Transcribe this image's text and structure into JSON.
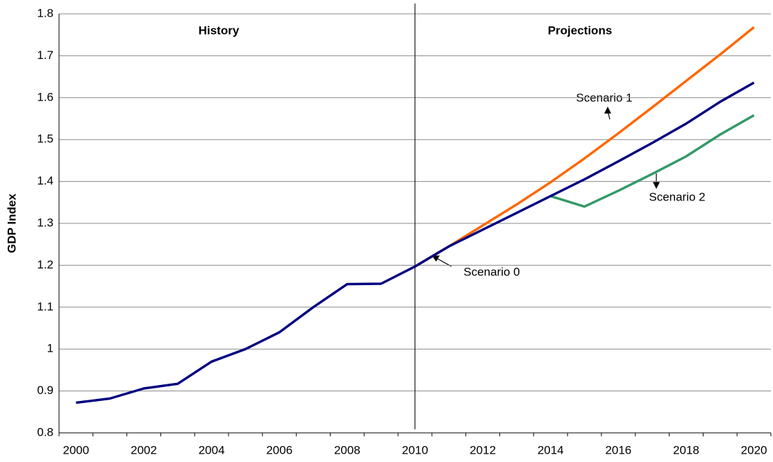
{
  "chart_data": {
    "type": "line",
    "y_label": "GDP Index",
    "categories": [
      "2000",
      null,
      "2002",
      null,
      "2004",
      null,
      "2006",
      null,
      "2008",
      null,
      "2010",
      null,
      "2012",
      null,
      "2014",
      null,
      "2016",
      null,
      "2018",
      null,
      "2020"
    ],
    "series": [
      {
        "name": "Scenario 0",
        "color": "#000080",
        "values": [
          0.872,
          0.882,
          0.906,
          0.917,
          0.97,
          1.0,
          1.04,
          1.1,
          1.155,
          1.156,
          1.197,
          1.245,
          1.285,
          1.325,
          1.365,
          1.405,
          1.448,
          1.492,
          1.538,
          1.59,
          1.636
        ]
      },
      {
        "name": "Scenario 1",
        "color": "#ff6600",
        "values": [
          null,
          null,
          null,
          null,
          null,
          null,
          null,
          null,
          null,
          null,
          1.197,
          1.245,
          1.295,
          1.345,
          1.398,
          1.455,
          1.515,
          1.577,
          1.64,
          1.703,
          1.768
        ]
      },
      {
        "name": "Scenario 2",
        "color": "#339966",
        "values": [
          null,
          null,
          null,
          null,
          null,
          null,
          null,
          null,
          null,
          null,
          null,
          null,
          null,
          null,
          1.365,
          1.34,
          1.378,
          1.418,
          1.46,
          1.512,
          1.558
        ]
      }
    ],
    "annotations": [
      "History",
      "Projections"
    ],
    "ylim": [
      0.8,
      1.8
    ],
    "yticks": [
      0.8,
      0.9,
      1,
      1.1,
      1.2,
      1.3,
      1.4,
      1.5,
      1.6,
      1.7,
      1.8
    ],
    "grid": true
  }
}
